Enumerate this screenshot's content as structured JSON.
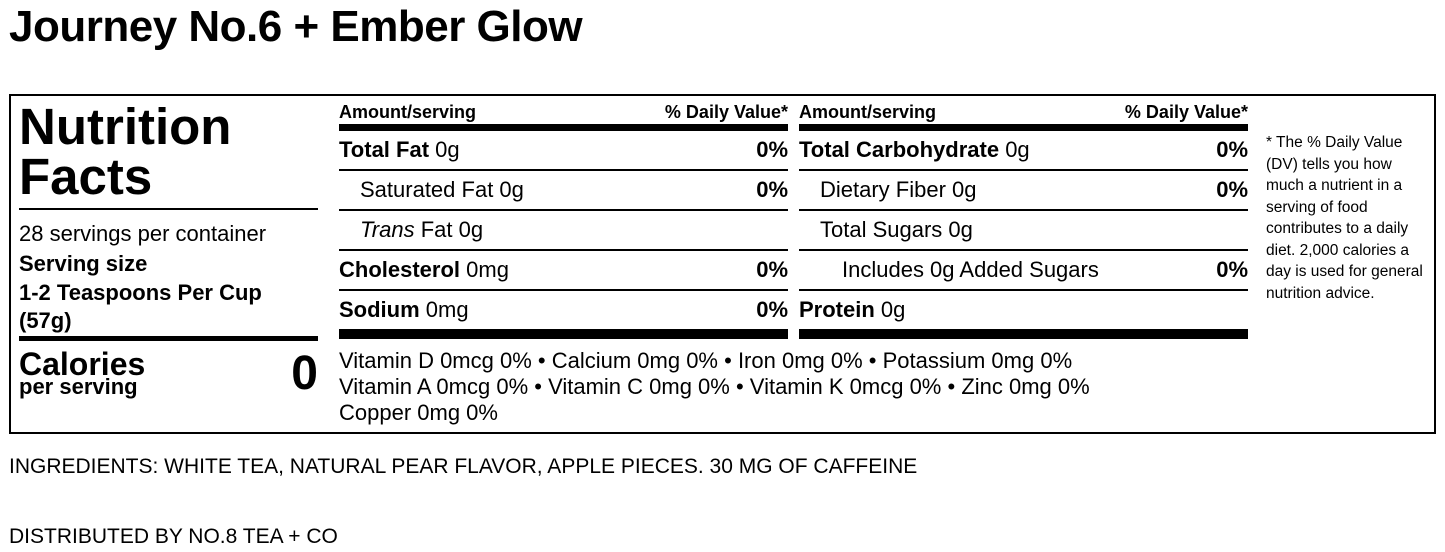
{
  "title": "Journey No.6 + Ember Glow",
  "panel": {
    "heading": "Nutrition Facts",
    "servings": "28 servings per container",
    "serving_size_label": "Serving size",
    "serving_size": "1-2 Teaspoons Per Cup (57g)",
    "calories_label": "Calories",
    "calories_sub": "per serving",
    "calories": 0,
    "columns": [
      {
        "header": [
          "Amount/serving",
          "% Daily Value*"
        ],
        "rows": [
          {
            "name": "Total Fat",
            "amount": "0g",
            "dv": "0%"
          },
          {
            "name": "Saturated Fat 0g",
            "dv": "0%"
          },
          {
            "name": [
              "Trans",
              "Fat 0g"
            ]
          },
          {
            "name": "Cholesterol",
            "amount": "0mg",
            "dv": "0%"
          },
          {
            "name": "Sodium",
            "amount": "0mg",
            "dv": "0%"
          }
        ]
      },
      {
        "header": [
          "Amount/serving",
          "% Daily Value*"
        ],
        "rows": [
          {
            "name": "Total Carbohydrate",
            "amount": "0g",
            "dv": "0%"
          },
          {
            "name": "Dietary Fiber 0g",
            "dv": "0%"
          },
          {
            "name": "Total Sugars 0g"
          },
          {
            "name": "Includes 0g Added Sugars",
            "dv": "0%"
          },
          {
            "name": "Protein",
            "amount": "0g"
          }
        ]
      }
    ],
    "vitamins": [
      [
        "Vitamin D 0mcg 0%",
        "Calcium 0mg 0%",
        "Iron 0mg 0%",
        "Potassium 0mg 0%"
      ],
      [
        "Vitamin A 0mcg 0%",
        "Vitamin C 0mg 0%",
        "Vitamin K 0mcg 0%",
        "Zinc 0mg 0%"
      ],
      [
        "Copper 0mg 0%"
      ]
    ],
    "footnote": "* The % Daily Value (DV) tells you how much a nutrient in a serving of food contributes to a daily diet. 2,000 calories a day is used for general nutrition advice."
  },
  "ingredients": "INGREDIENTS: WHITE TEA, NATURAL PEAR FLAVOR, APPLE PIECES. 30 MG OF CAFFEINE",
  "distributor": "DISTRIBUTED BY NO.8 TEA + CO"
}
